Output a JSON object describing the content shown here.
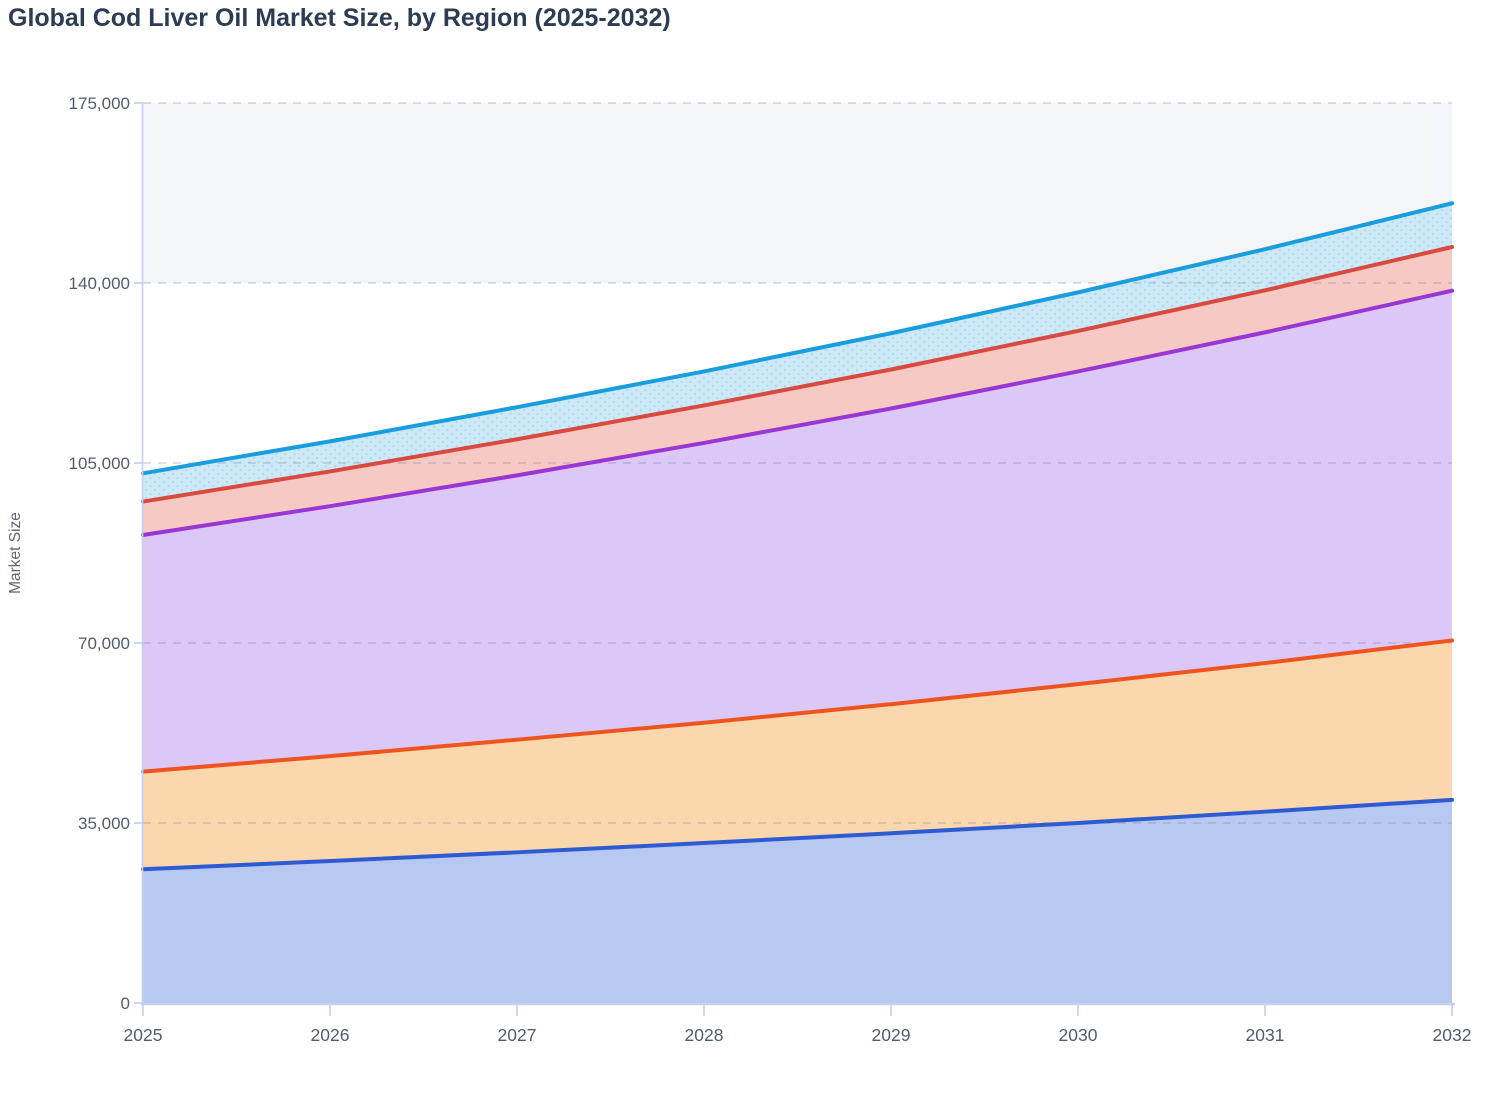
{
  "title": "Global Cod Liver Oil Market Size, by Region (2025-2032)",
  "colors": {
    "title": "#2b3c53",
    "tick_label": "#515d6c",
    "axis_title": "#5a6575",
    "axis_line": "#c3cfef",
    "gridline": "rgba(116,128,152,0.32)",
    "plot_band": "#f3f5f8",
    "page_background": "#ffffff"
  },
  "y_axis": {
    "title": "Market Size",
    "ticks": [
      "0",
      "35,000",
      "70,000",
      "105,000",
      "140,000",
      "175,000"
    ]
  },
  "x_axis": {
    "ticks": [
      "2025",
      "2026",
      "2027",
      "2028",
      "2029",
      "2030",
      "2031",
      "2032"
    ]
  },
  "chart_data": {
    "type": "area",
    "stacked": true,
    "title": "Global Cod Liver Oil Market Size, by Region (2025-2032)",
    "xlabel": "",
    "ylabel": "Market Size",
    "x": [
      2025,
      2026,
      2027,
      2028,
      2029,
      2030,
      2031,
      2032
    ],
    "ylim": [
      0,
      175000
    ],
    "grid": true,
    "legend": "none",
    "series": [
      {
        "name": "blue (bottom band)",
        "values": [
          26000,
          27600,
          29300,
          31100,
          33000,
          35000,
          37200,
          39500
        ],
        "line_color": "#2e5bd3",
        "fill_color": "#b8c9f1",
        "pattern": "none"
      },
      {
        "name": "orange band",
        "values": [
          19000,
          20400,
          21900,
          23400,
          25100,
          27000,
          28900,
          31000
        ],
        "line_color": "#ef5420",
        "fill_color": "#fbd7ad",
        "pattern": "none"
      },
      {
        "name": "purple band",
        "values": [
          46000,
          48600,
          51400,
          54400,
          57500,
          60800,
          64300,
          68000
        ],
        "line_color": "#9a36d3",
        "fill_color": "#dcc8f6",
        "pattern": "none"
      },
      {
        "name": "red band",
        "values": [
          6500,
          6760,
          7020,
          7290,
          7580,
          7880,
          8180,
          8500
        ],
        "line_color": "#d9493f",
        "fill_color": "#f6c9c5",
        "pattern": "none"
      },
      {
        "name": "cyan (top band)",
        "values": [
          5500,
          5850,
          6230,
          6620,
          7050,
          7500,
          7990,
          8500
        ],
        "line_color": "#189dde",
        "fill_color": "#cde9f7",
        "pattern": "dots",
        "pattern_color": "#98c8e6"
      }
    ],
    "stacked_totals": [
      103000,
      109210,
      115850,
      122810,
      130230,
      138180,
      146570,
      155500
    ]
  }
}
